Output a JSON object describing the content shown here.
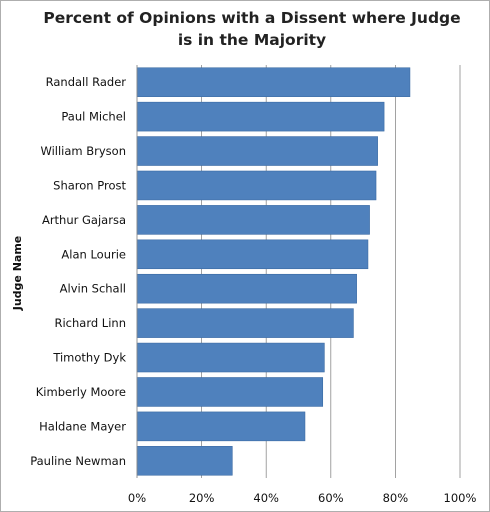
{
  "chart_data": {
    "type": "bar",
    "orientation": "horizontal",
    "title": "Percent of Opinions with a Dissent where Judge is in the Majority",
    "title_lines": [
      "Percent of Opinions with a Dissent where Judge",
      "is in the Majority"
    ],
    "ylabel": "Judge Name",
    "xlabel": "",
    "categories": [
      "Randall Rader",
      "Paul Michel",
      "William Bryson",
      "Sharon Prost",
      "Arthur Gajarsa",
      "Alan Lourie",
      "Alvin Schall",
      "Richard Linn",
      "Timothy Dyk",
      "Kimberly Moore",
      "Haldane Mayer",
      "Pauline Newman"
    ],
    "values": [
      84.5,
      76.5,
      74.5,
      74,
      72,
      71.5,
      68,
      67,
      58,
      57.5,
      52,
      29.5
    ],
    "xlim": [
      0,
      100
    ],
    "x_ticks": [
      0,
      20,
      40,
      60,
      80,
      100
    ],
    "tick_labels": [
      "0%",
      "20%",
      "40%",
      "60%",
      "80%",
      "100%"
    ],
    "grid": true,
    "legend": "none",
    "colors": {
      "bar": "#4f81bd",
      "grid": "#8a8a8a"
    }
  }
}
